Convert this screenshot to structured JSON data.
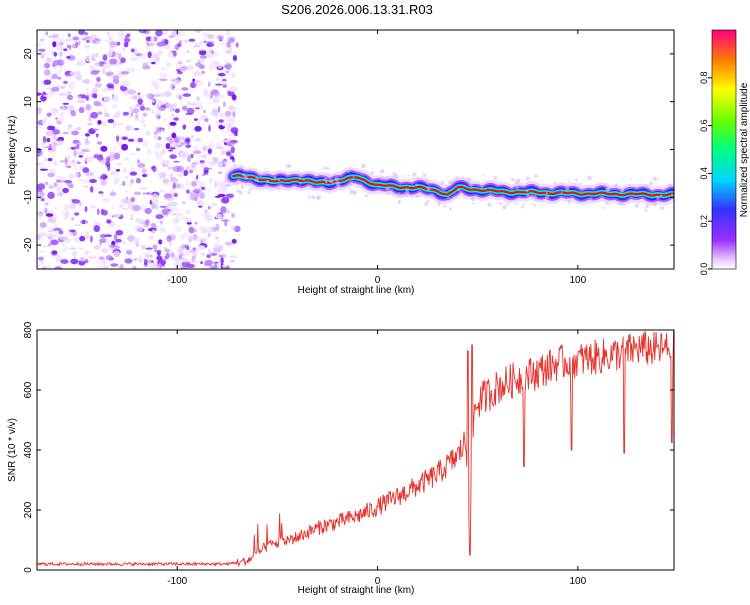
{
  "title": "S206.2026.006.13.31.R03",
  "chart_data": [
    {
      "type": "heatmap",
      "name": "spectrogram",
      "xlabel": "Height of straight line (km)",
      "ylabel": "Frequency (Hz)",
      "xlim": [
        -170,
        148
      ],
      "ylim": [
        -25,
        25
      ],
      "xticks": [
        -100,
        0,
        100
      ],
      "yticks": [
        20,
        10,
        0,
        -10,
        -20
      ],
      "colorbar": {
        "label": "Normalized spectral amplitude",
        "range": [
          0,
          1
        ],
        "ticks": [
          "0.0",
          "0.2",
          "0.4",
          "0.6",
          "0.8"
        ],
        "tick_values": [
          0,
          0.2,
          0.4,
          0.6,
          0.8
        ]
      },
      "noise_region": {
        "x": [
          -170,
          -70
        ],
        "y": [
          -25,
          25
        ]
      },
      "trace": {
        "x": [
          -72,
          -60,
          -50,
          -40,
          -30,
          -20,
          -10,
          0,
          10,
          20,
          30,
          35,
          40,
          50,
          60,
          80,
          100,
          120,
          148
        ],
        "freq": [
          -5.5,
          -6.0,
          -6.8,
          -6.2,
          -7.0,
          -6.6,
          -5.8,
          -7.5,
          -7.8,
          -8.0,
          -8.6,
          -9.5,
          -8.0,
          -8.4,
          -8.8,
          -9.0,
          -9.2,
          -9.3,
          -9.5
        ]
      }
    },
    {
      "type": "line",
      "name": "snr",
      "xlabel": "Height of straight line (km)",
      "ylabel": "SNR (10 * v/v)",
      "xlim": [
        -170,
        148
      ],
      "ylim": [
        0,
        800
      ],
      "xticks": [
        -100,
        0,
        100
      ],
      "yticks": [
        0,
        200,
        400,
        600,
        800
      ],
      "color": "#e8312a",
      "x": [
        -170,
        -100,
        -75,
        -65,
        -55,
        -50,
        -40,
        -30,
        -20,
        -10,
        0,
        10,
        20,
        30,
        40,
        44,
        46,
        48,
        50,
        60,
        70,
        80,
        90,
        100,
        110,
        120,
        130,
        140,
        148
      ],
      "y": [
        20,
        20,
        20,
        30,
        80,
        90,
        110,
        140,
        160,
        180,
        210,
        245,
        280,
        320,
        380,
        430,
        120,
        520,
        560,
        610,
        640,
        660,
        690,
        700,
        710,
        720,
        740,
        735,
        740
      ],
      "dips": [
        {
          "x": 46,
          "y": 50
        },
        {
          "x": 73,
          "y": 345
        },
        {
          "x": 97,
          "y": 400
        },
        {
          "x": 123,
          "y": 390
        },
        {
          "x": 147,
          "y": 425
        }
      ],
      "spikes": [
        {
          "x": 45,
          "y": 730
        },
        {
          "x": 47,
          "y": 750
        }
      ]
    }
  ]
}
